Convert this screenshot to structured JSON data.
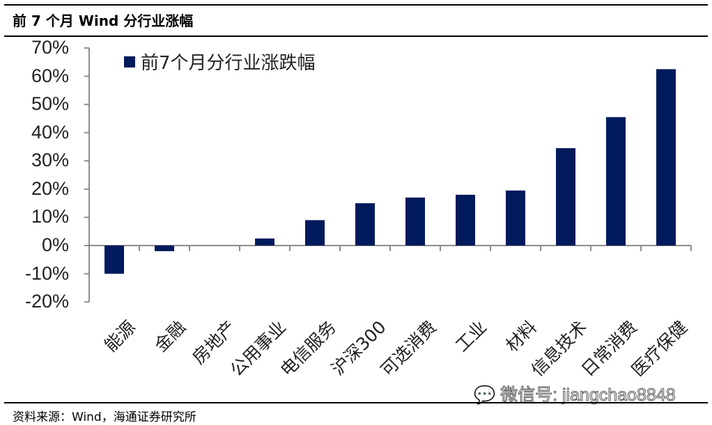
{
  "header": {
    "title": "前 7 个月 Wind 分行业涨幅"
  },
  "footer": {
    "source": "资料来源：Wind，海通证券研究所"
  },
  "watermark": {
    "text": "微信号: jiangchao8848",
    "icon": "wechat-icon"
  },
  "legend": {
    "label": "前7个月分行业涨跌幅",
    "color": "#001a5c"
  },
  "chart_data": {
    "type": "bar",
    "title": "前 7 个月 Wind 分行业涨幅",
    "xlabel": "",
    "ylabel": "",
    "ylim": [
      -0.2,
      0.7
    ],
    "yticks": [
      "70%",
      "60%",
      "50%",
      "40%",
      "30%",
      "20%",
      "10%",
      "0%",
      "-10%",
      "-20%"
    ],
    "grid": false,
    "legend_position": "top-left",
    "categories": [
      "能源",
      "金融",
      "房地产",
      "公用事业",
      "电信服务",
      "沪深300",
      "可选消费",
      "工业",
      "材料",
      "信息技术",
      "日常消费",
      "医疗保健"
    ],
    "series": [
      {
        "name": "前7个月分行业涨跌幅",
        "color": "#001a5c",
        "values": [
          -0.1,
          -0.02,
          0.0,
          0.025,
          0.09,
          0.15,
          0.17,
          0.18,
          0.195,
          0.345,
          0.455,
          0.625
        ]
      }
    ]
  }
}
